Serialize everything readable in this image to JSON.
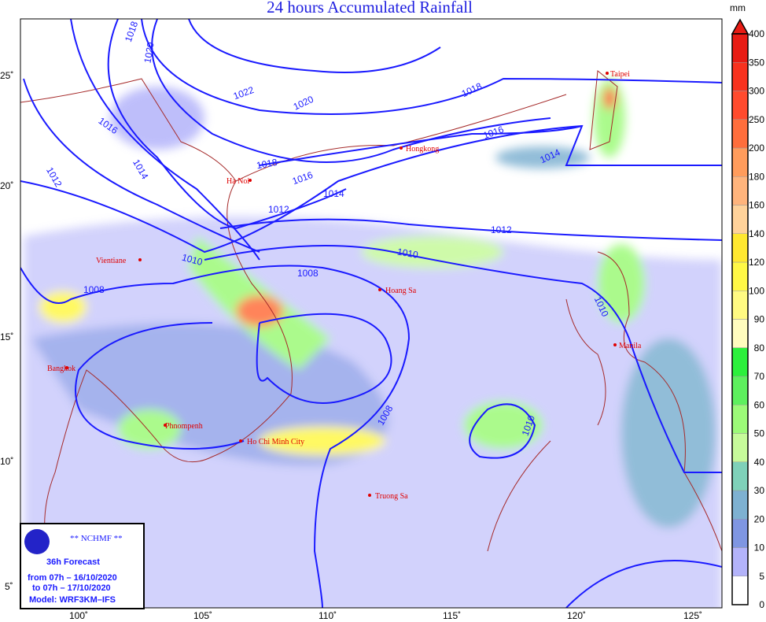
{
  "title": "24 hours Accumulated Rainfall",
  "colorbar": {
    "unit": "mm",
    "labels": [
      "0",
      "5",
      "10",
      "20",
      "30",
      "40",
      "50",
      "60",
      "70",
      "80",
      "90",
      "100",
      "120",
      "140",
      "160",
      "180",
      "200",
      "250",
      "300",
      "350",
      "400"
    ],
    "colors": [
      "#ffffff",
      "#b3b3fa",
      "#7f96e2",
      "#7eb1d1",
      "#7fd1b9",
      "#c6fa9a",
      "#9cfa78",
      "#5ef05e",
      "#2cf03c",
      "#fffcbe",
      "#fffa82",
      "#fff846",
      "#ffe830",
      "#ffd29a",
      "#ffb47c",
      "#ff9c5c",
      "#ff6e3c",
      "#ff4b2e",
      "#f8321e",
      "#e81c14"
    ]
  },
  "axes": {
    "lon": [
      "100˚",
      "105˚",
      "110˚",
      "115˚",
      "120˚",
      "125˚"
    ],
    "lat": [
      "25˚",
      "20˚",
      "15˚",
      "10˚",
      "5˚"
    ]
  },
  "isobars": [
    "1018",
    "1020",
    "1022",
    "1020",
    "1018",
    "1016",
    "1014",
    "1012",
    "1018",
    "1016",
    "1014",
    "1012",
    "1012",
    "1010",
    "1010",
    "1008",
    "1008",
    "1010",
    "1008",
    "1010",
    "1016",
    "1014"
  ],
  "cities": [
    "Taipei",
    "Hongkong",
    "Ha Noi",
    "Vientiane",
    "Hoang Sa",
    "Manila",
    "Bangkok",
    "Phnompenh",
    "Ho Chi Minh City",
    "Truong Sa"
  ],
  "legend": {
    "org": "** NCHMF **",
    "logo_text": "NCHMF",
    "forecast": "36h Forecast",
    "from": "from 07h – 16/10/2020",
    "to": "to 07h – 17/10/2020",
    "model": "Model: WRF3KM–IFS"
  }
}
